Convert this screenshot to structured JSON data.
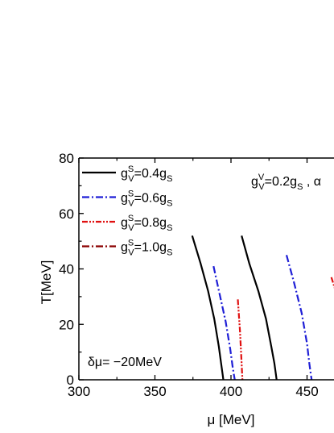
{
  "chart_data": {
    "type": "line",
    "xlabel": "μ [MeV]",
    "ylabel": "T[MeV]",
    "xlim": [
      300,
      470
    ],
    "ylim": [
      0,
      80
    ],
    "x_ticks": [
      "300",
      "350",
      "400",
      "450"
    ],
    "y_ticks": [
      "0",
      "20",
      "40",
      "60",
      "80"
    ],
    "legend": "top-left",
    "annotation": {
      "coupling_left": "g",
      "coupling_sup": "V",
      "coupling_sub": "V",
      "coupling_right": "=0.2g",
      "coupling_sub2": "S",
      "coupling_tail": " , α",
      "delta_mu": "δμ= −20MeV"
    },
    "series": [
      {
        "name": "gVS=0.4gS",
        "label_main": "g",
        "label_sup": "S",
        "label_sub": "V",
        "label_rest": "=0.4g",
        "label_sub2": "S",
        "color": "#000000",
        "dash": "solid",
        "branches": [
          {
            "x": [
              374.5,
              380,
              385,
              389,
              392,
              393.5,
              394.5,
              395
            ],
            "y": [
              52,
              42,
              32,
              22,
              12,
              6,
              2,
              0
            ]
          },
          {
            "x": [
              407,
              412,
              418,
              423,
              426.5,
              428.5,
              429.5,
              430
            ],
            "y": [
              52,
              42,
              32,
              22,
              12,
              6,
              2,
              0
            ]
          }
        ]
      },
      {
        "name": "gVS=0.6gS",
        "label_main": "g",
        "label_sup": "S",
        "label_sub": "V",
        "label_rest": "=0.6g",
        "label_sub2": "S",
        "color": "#1f1fd6",
        "dash": "dashdot",
        "branches": [
          {
            "x": [
              388.5,
              392.5,
              396.5,
              399.5,
              401,
              402,
              402.5
            ],
            "y": [
              41,
              31,
              21,
              11,
              5,
              1.5,
              0
            ]
          },
          {
            "x": [
              436.5,
              441.5,
              446.5,
              450,
              451.5,
              452.5,
              453
            ],
            "y": [
              45,
              35,
              24,
              13,
              6,
              2,
              0
            ]
          }
        ]
      },
      {
        "name": "gVS=0.8gS",
        "label_main": "g",
        "label_sup": "S",
        "label_sub": "V",
        "label_rest": "=0.8g",
        "label_sub2": "S",
        "color": "#e01010",
        "dash": "dashdotdot",
        "branches": [
          {
            "x": [
              404.5,
              406,
              407,
              407.5
            ],
            "y": [
              29,
              17,
              6,
              0
            ]
          },
          {
            "x": [
              466,
              470
            ],
            "y": [
              37,
              30
            ]
          }
        ]
      },
      {
        "name": "gVS=1.0gS",
        "label_main": "g",
        "label_sup": "S",
        "label_sub": "V",
        "label_rest": "=1.0g",
        "label_sub2": "S",
        "color": "#8b0000",
        "dash": "dashdot",
        "branches": []
      }
    ]
  }
}
